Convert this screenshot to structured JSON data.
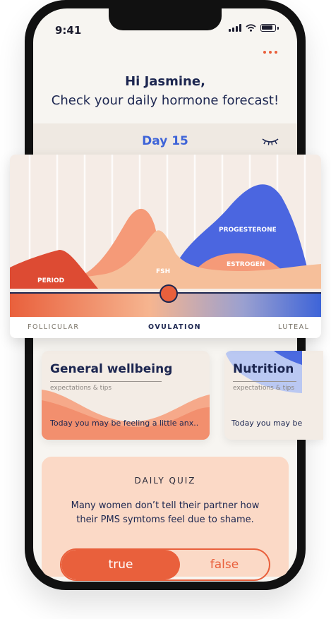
{
  "status": {
    "time": "9:41"
  },
  "greeting": {
    "title": "Hi Jasmine,",
    "subtitle": "Check your daily hormone forecast!"
  },
  "forecast": {
    "day_label": "Day 15"
  },
  "chart": {
    "labels": {
      "period": "PERIOD",
      "fsh": "FSH",
      "progesterone": "PROGESTERONE",
      "estrogen": "ESTROGEN"
    },
    "phases": {
      "follicular": "FOLLICULAR",
      "ovulation": "OVULATION",
      "luteal": "LUTEAL"
    }
  },
  "cards": [
    {
      "title": "General wellbeing",
      "subtitle": "expectations & tips",
      "text": "Today you may be feeling a little anx.."
    },
    {
      "title": "Nutrition",
      "subtitle": "expectations & tips",
      "text": "Today you may be"
    }
  ],
  "quiz": {
    "title": "DAILY QUIZ",
    "question": "Many women don’t tell their partner how their PMS symtoms feel due to shame.",
    "true_label": "true",
    "false_label": "false"
  },
  "colors": {
    "accent": "#e9603c",
    "blue": "#3e64d8",
    "navy": "#1c2650"
  }
}
